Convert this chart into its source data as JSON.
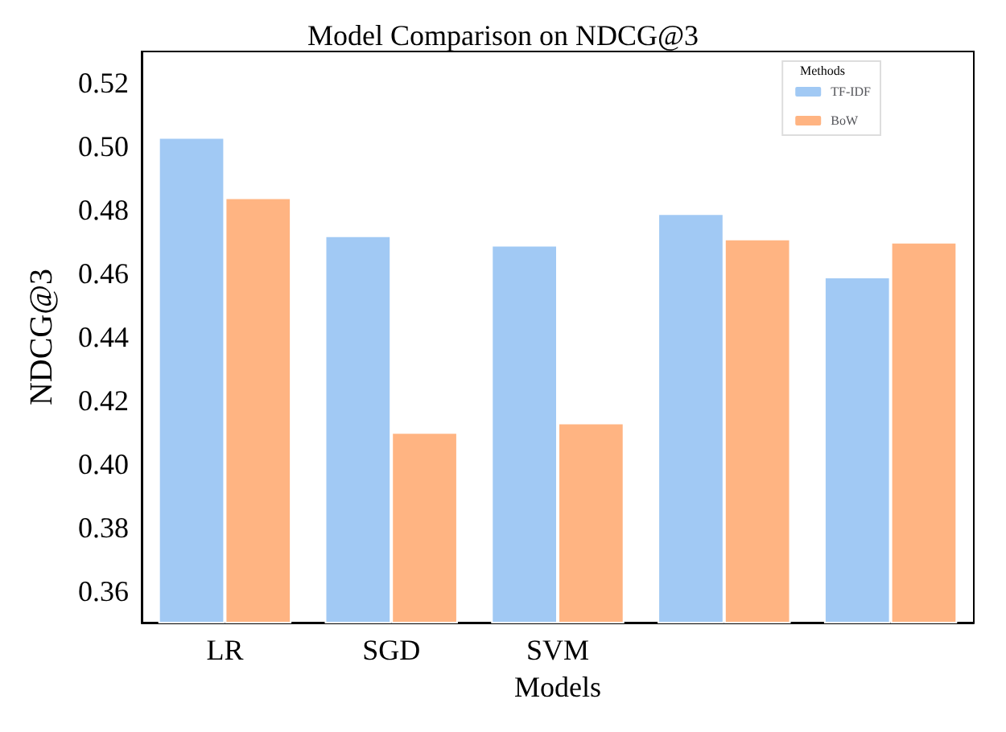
{
  "chart_data": {
    "type": "bar",
    "title": "Model Comparison on NDCG@3",
    "xlabel": "Models",
    "ylabel": "NDCG@3",
    "legend_title": "Methods",
    "categories": [
      "LR",
      "SGD",
      "SVM",
      null,
      null
    ],
    "series": [
      {
        "name": "TF-IDF",
        "color": "#a1c9f4",
        "values": [
          0.503,
          0.472,
          0.469,
          0.479,
          0.459
        ]
      },
      {
        "name": "BoW",
        "color": "#ffb482",
        "values": [
          0.484,
          0.41,
          0.413,
          0.471,
          0.47
        ]
      }
    ],
    "ylim": [
      0.35,
      0.53
    ],
    "yticks": [
      0.36,
      0.38,
      {
        "value": 0.4,
        "label": "0.40"
      },
      0.42,
      0.44,
      0.46,
      0.48,
      {
        "value": 0.5,
        "label": "0.50"
      },
      0.52
    ],
    "grid": false,
    "legend": "top right"
  }
}
